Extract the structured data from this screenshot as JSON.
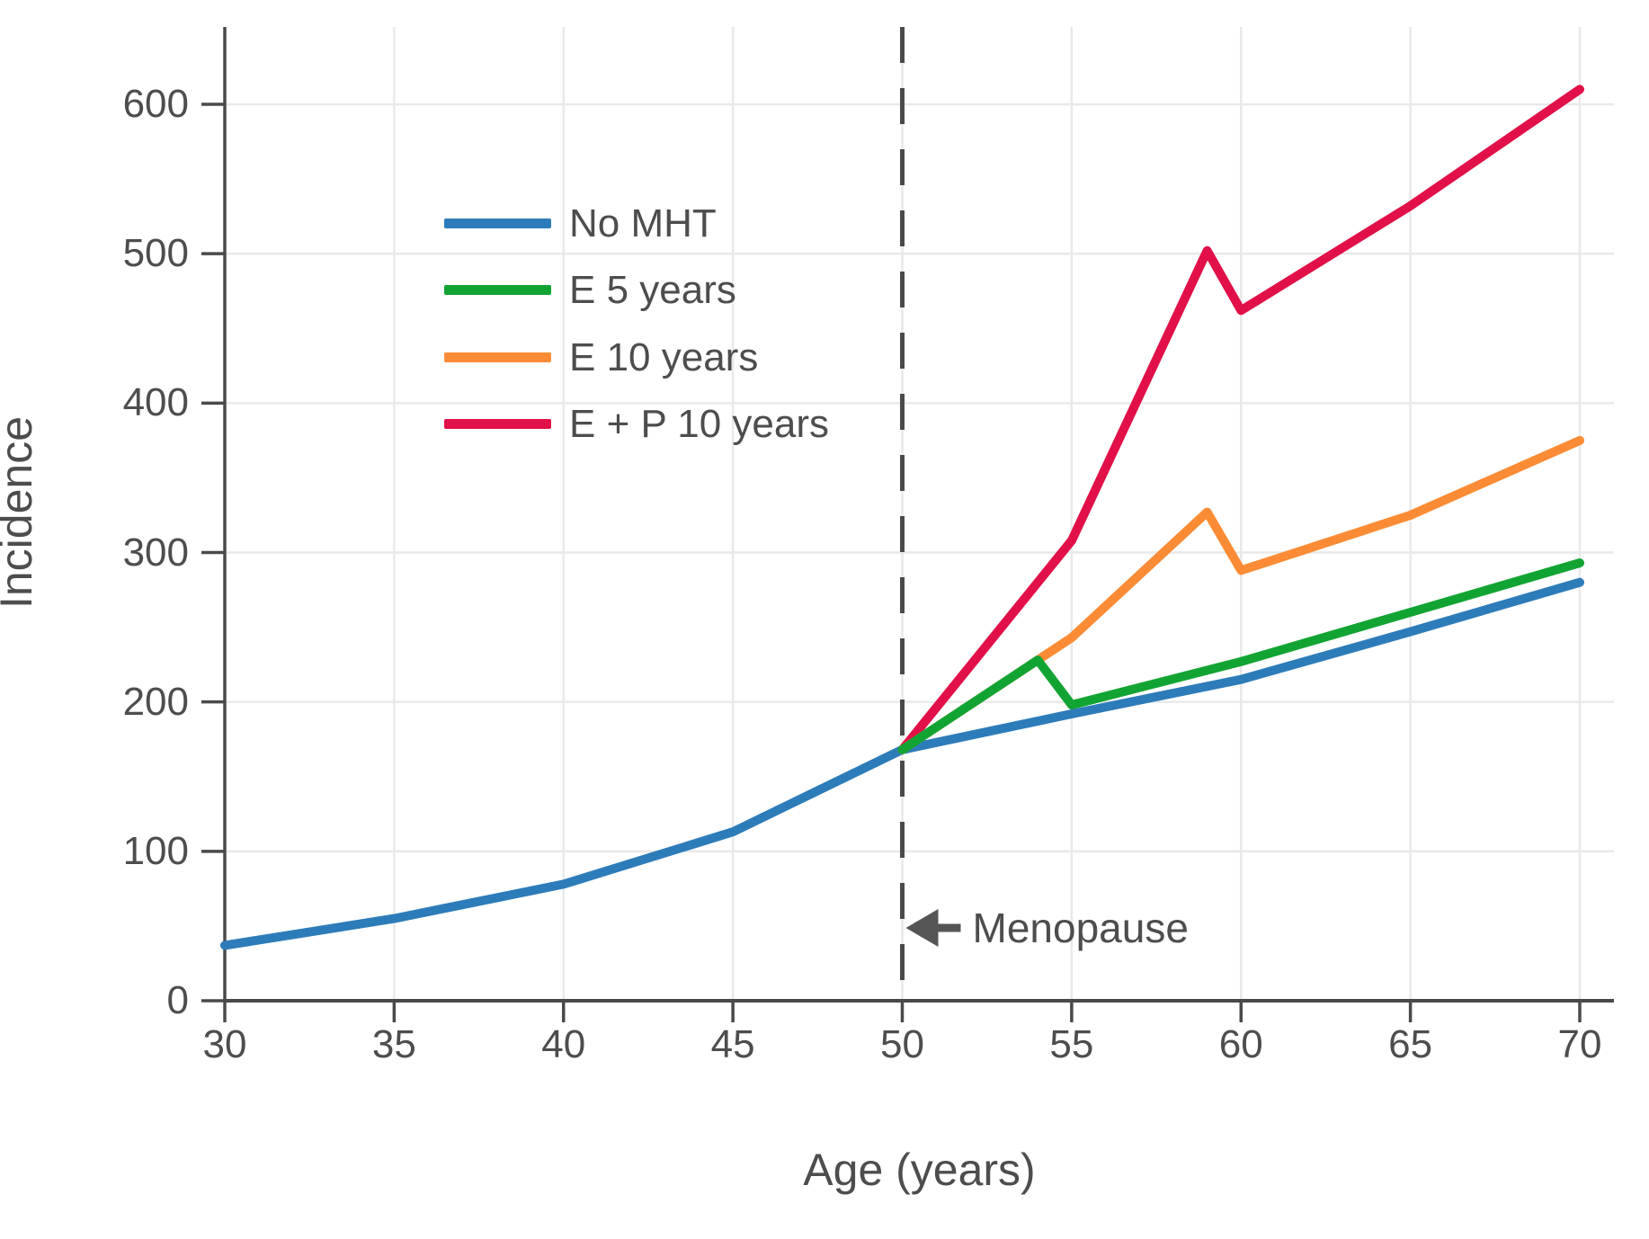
{
  "chart_data": {
    "type": "line",
    "title": "",
    "xlabel": "Age (years)",
    "ylabel": "Incidence",
    "xlim": [
      30,
      71
    ],
    "ylim": [
      0,
      651
    ],
    "x_ticks": [
      30,
      35,
      40,
      45,
      50,
      55,
      60,
      65,
      70
    ],
    "y_ticks": [
      0,
      100,
      200,
      300,
      400,
      500,
      600
    ],
    "grid": true,
    "legend_position": "upper-left-inside",
    "series": [
      {
        "name": "No MHT",
        "color": "#2d7cba",
        "x": [
          30,
          35,
          40,
          45,
          50,
          55,
          60,
          65,
          70
        ],
        "y": [
          37,
          55,
          78,
          113,
          168,
          192,
          215,
          247,
          280
        ]
      },
      {
        "name": "E 5 years",
        "color": "#12a433",
        "x": [
          50,
          54,
          55,
          60,
          65,
          70
        ],
        "y": [
          168,
          228,
          198,
          227,
          260,
          293
        ]
      },
      {
        "name": "E 10 years",
        "color": "#fb8c35",
        "x": [
          50,
          55,
          59,
          60,
          65,
          70
        ],
        "y": [
          168,
          243,
          327,
          288,
          325,
          375
        ]
      },
      {
        "name": "E + P 10 years",
        "color": "#e11048",
        "x": [
          50,
          55,
          59,
          60,
          65,
          70
        ],
        "y": [
          168,
          308,
          502,
          462,
          532,
          610
        ]
      }
    ],
    "vline": {
      "x": 50,
      "style": "dashed",
      "color": "#4a4a4a"
    },
    "annotation": {
      "text": "Menopause",
      "arrow": "left",
      "at_x": 50
    },
    "colors": {
      "axis": "#4a4a4a",
      "grid": "#e9e9e9",
      "text": "#4d4d4d"
    }
  }
}
